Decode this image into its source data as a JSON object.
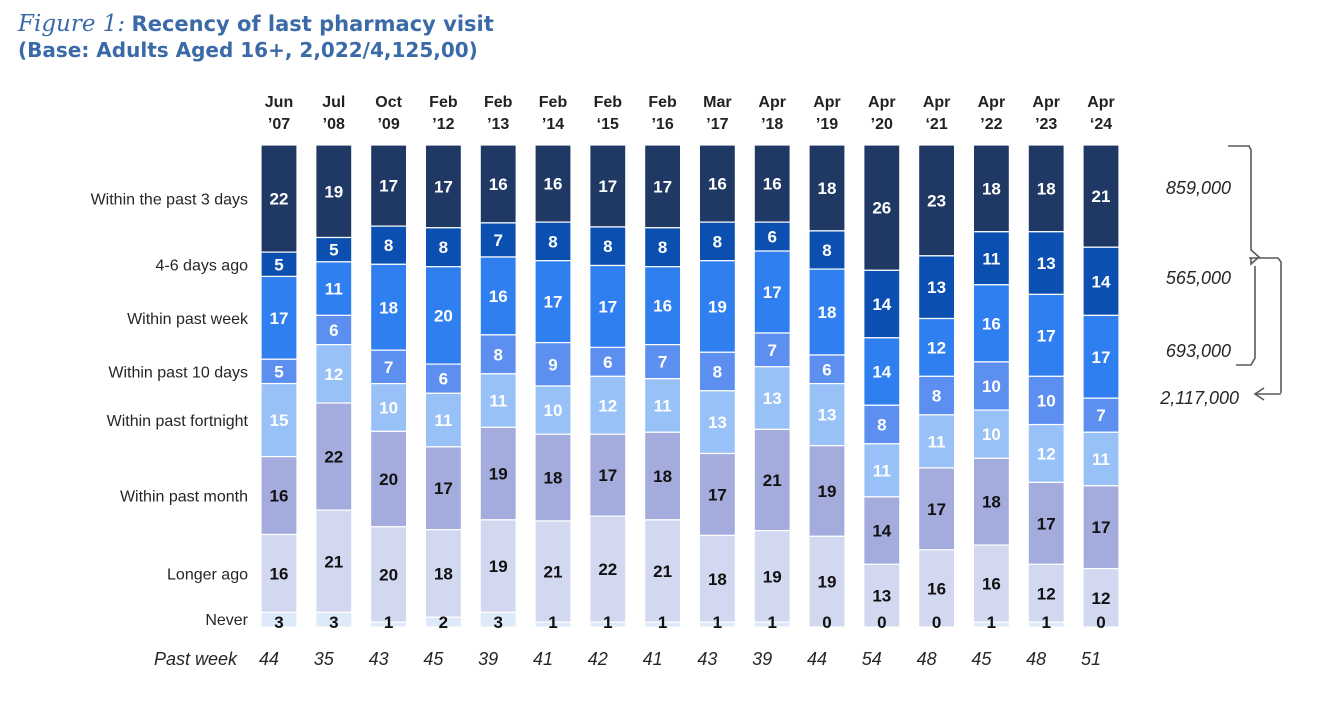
{
  "title": {
    "figure_label": "Figure 1:",
    "main": "Recency of last pharmacy visit",
    "subtitle": "(Base: Adults Aged 16+, 2,022/4,125,00)"
  },
  "chart_data": {
    "type": "bar",
    "stacked": true,
    "percent_stacked": true,
    "categories": [
      [
        "Jun",
        "’07"
      ],
      [
        "Jul",
        "’08"
      ],
      [
        "Oct",
        "’09"
      ],
      [
        "Feb",
        "’12"
      ],
      [
        "Feb",
        "’13"
      ],
      [
        "Feb",
        "’14"
      ],
      [
        "Feb",
        "‘15"
      ],
      [
        "Feb",
        "’16"
      ],
      [
        "Mar",
        "’17"
      ],
      [
        "Apr",
        "’18"
      ],
      [
        "Apr",
        "’19"
      ],
      [
        "Apr",
        "’20"
      ],
      [
        "Apr",
        "‘21"
      ],
      [
        "Apr",
        "’22"
      ],
      [
        "Apr",
        "’23"
      ],
      [
        "Apr",
        "‘24"
      ]
    ],
    "series": [
      {
        "name": "Within the past 3 days",
        "color": "#203864",
        "text_color": "#ffffff",
        "values": [
          22,
          19,
          17,
          17,
          16,
          16,
          17,
          17,
          16,
          16,
          18,
          26,
          23,
          18,
          18,
          21
        ]
      },
      {
        "name": "4-6 days ago",
        "color": "#0b4fb0",
        "text_color": "#ffffff",
        "values": [
          5,
          5,
          8,
          8,
          7,
          8,
          8,
          8,
          8,
          6,
          8,
          14,
          13,
          11,
          13,
          14
        ]
      },
      {
        "name": "Within past week",
        "color": "#2f7ff0",
        "text_color": "#ffffff",
        "values": [
          17,
          11,
          18,
          20,
          16,
          17,
          17,
          16,
          19,
          17,
          18,
          14,
          12,
          16,
          17,
          17
        ]
      },
      {
        "name": "Within past 10 days",
        "color": "#5d8ff0",
        "text_color": "#ffffff",
        "values": [
          5,
          6,
          7,
          6,
          8,
          9,
          6,
          7,
          8,
          7,
          6,
          8,
          8,
          10,
          10,
          7
        ]
      },
      {
        "name": "Within past fortnight",
        "color": "#98c1f7",
        "text_color": "#ffffff",
        "values": [
          15,
          12,
          10,
          11,
          11,
          10,
          12,
          11,
          13,
          13,
          13,
          11,
          11,
          10,
          12,
          11
        ]
      },
      {
        "name": "Within past month",
        "color": "#a4abdd",
        "text_color": "#111111",
        "values": [
          16,
          22,
          20,
          17,
          19,
          18,
          17,
          18,
          17,
          21,
          19,
          14,
          17,
          18,
          17,
          17
        ]
      },
      {
        "name": "Longer ago",
        "color": "#d3d8f1",
        "text_color": "#111111",
        "values": [
          16,
          21,
          20,
          18,
          19,
          21,
          22,
          21,
          18,
          19,
          19,
          13,
          16,
          16,
          12,
          12
        ]
      },
      {
        "name": "Never",
        "color": "#dceafa",
        "text_color": "#111111",
        "values": [
          3,
          3,
          1,
          2,
          3,
          1,
          1,
          1,
          1,
          1,
          0,
          0,
          0,
          1,
          1,
          0
        ]
      }
    ],
    "past_week": {
      "label": "Past week",
      "values": [
        44,
        35,
        43,
        45,
        39,
        41,
        42,
        41,
        43,
        39,
        44,
        54,
        48,
        45,
        48,
        51
      ]
    },
    "annotations": [
      {
        "text": "859,000"
      },
      {
        "text": "565,000"
      },
      {
        "text": "693,000"
      },
      {
        "text": "2,117,000"
      }
    ]
  }
}
